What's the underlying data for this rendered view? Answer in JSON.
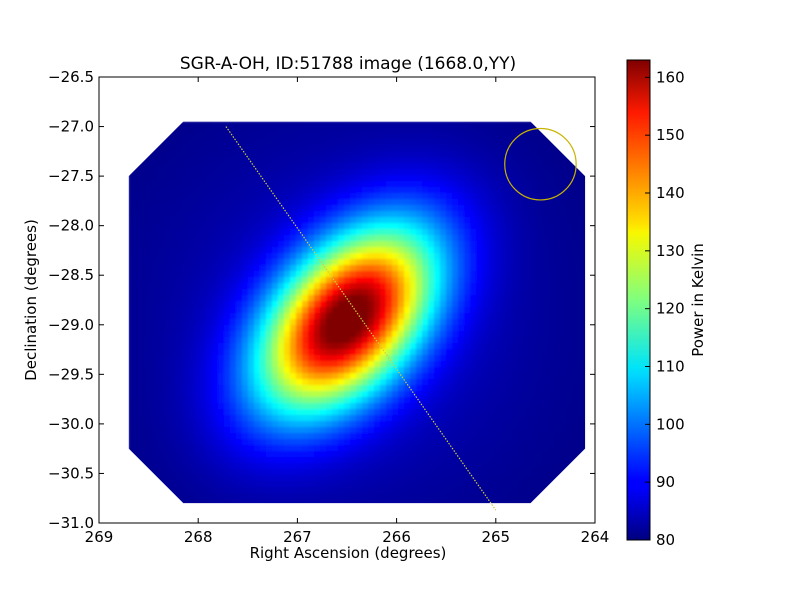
{
  "chart_data": {
    "type": "heatmap",
    "title": "SGR-A-OH, ID:51788 image (1668.0,YY)",
    "xlabel": "Right Ascension (degrees)",
    "ylabel": "Declination (degrees)",
    "xlim": [
      269,
      264
    ],
    "ylim": [
      -31.0,
      -26.5
    ],
    "x_ticks": [
      269,
      268,
      267,
      266,
      265,
      264
    ],
    "x_tick_labels": [
      "269",
      "268",
      "267",
      "266",
      "265",
      "264"
    ],
    "y_ticks": [
      -26.5,
      -27.0,
      -27.5,
      -28.0,
      -28.5,
      -29.0,
      -29.5,
      -30.0,
      -30.5,
      -31.0
    ],
    "y_tick_labels": [
      "−26.5",
      "−27.0",
      "−27.5",
      "−28.0",
      "−28.5",
      "−29.0",
      "−29.5",
      "−30.0",
      "−30.5",
      "−31.0"
    ],
    "colorbar": {
      "label": "Power in Kelvin",
      "range": [
        80,
        163
      ],
      "ticks": [
        80,
        90,
        100,
        110,
        120,
        130,
        140,
        150,
        160
      ],
      "tick_labels": [
        "80",
        "90",
        "100",
        "110",
        "120",
        "130",
        "140",
        "150",
        "160"
      ],
      "colormap": "jet"
    },
    "map": {
      "footprint_ra": [
        268.7,
        264.1
      ],
      "footprint_dec": [
        -30.8,
        -26.95
      ],
      "corner_cut_deg": 0.55,
      "peak": {
        "ra": 266.5,
        "dec": -28.95,
        "value": 162
      },
      "background": 80,
      "source_sigma_major_deg": 0.75,
      "source_sigma_minor_deg": 0.45,
      "source_angle_deg": 48
    },
    "scan_line": {
      "from": [
        267.72,
        -27.0
      ],
      "to": [
        265.0,
        -30.87
      ],
      "color": "#cccc44"
    },
    "beam_circle": {
      "center": [
        264.55,
        -27.38
      ],
      "radius_deg": 0.36,
      "color": "#c8b400"
    }
  }
}
